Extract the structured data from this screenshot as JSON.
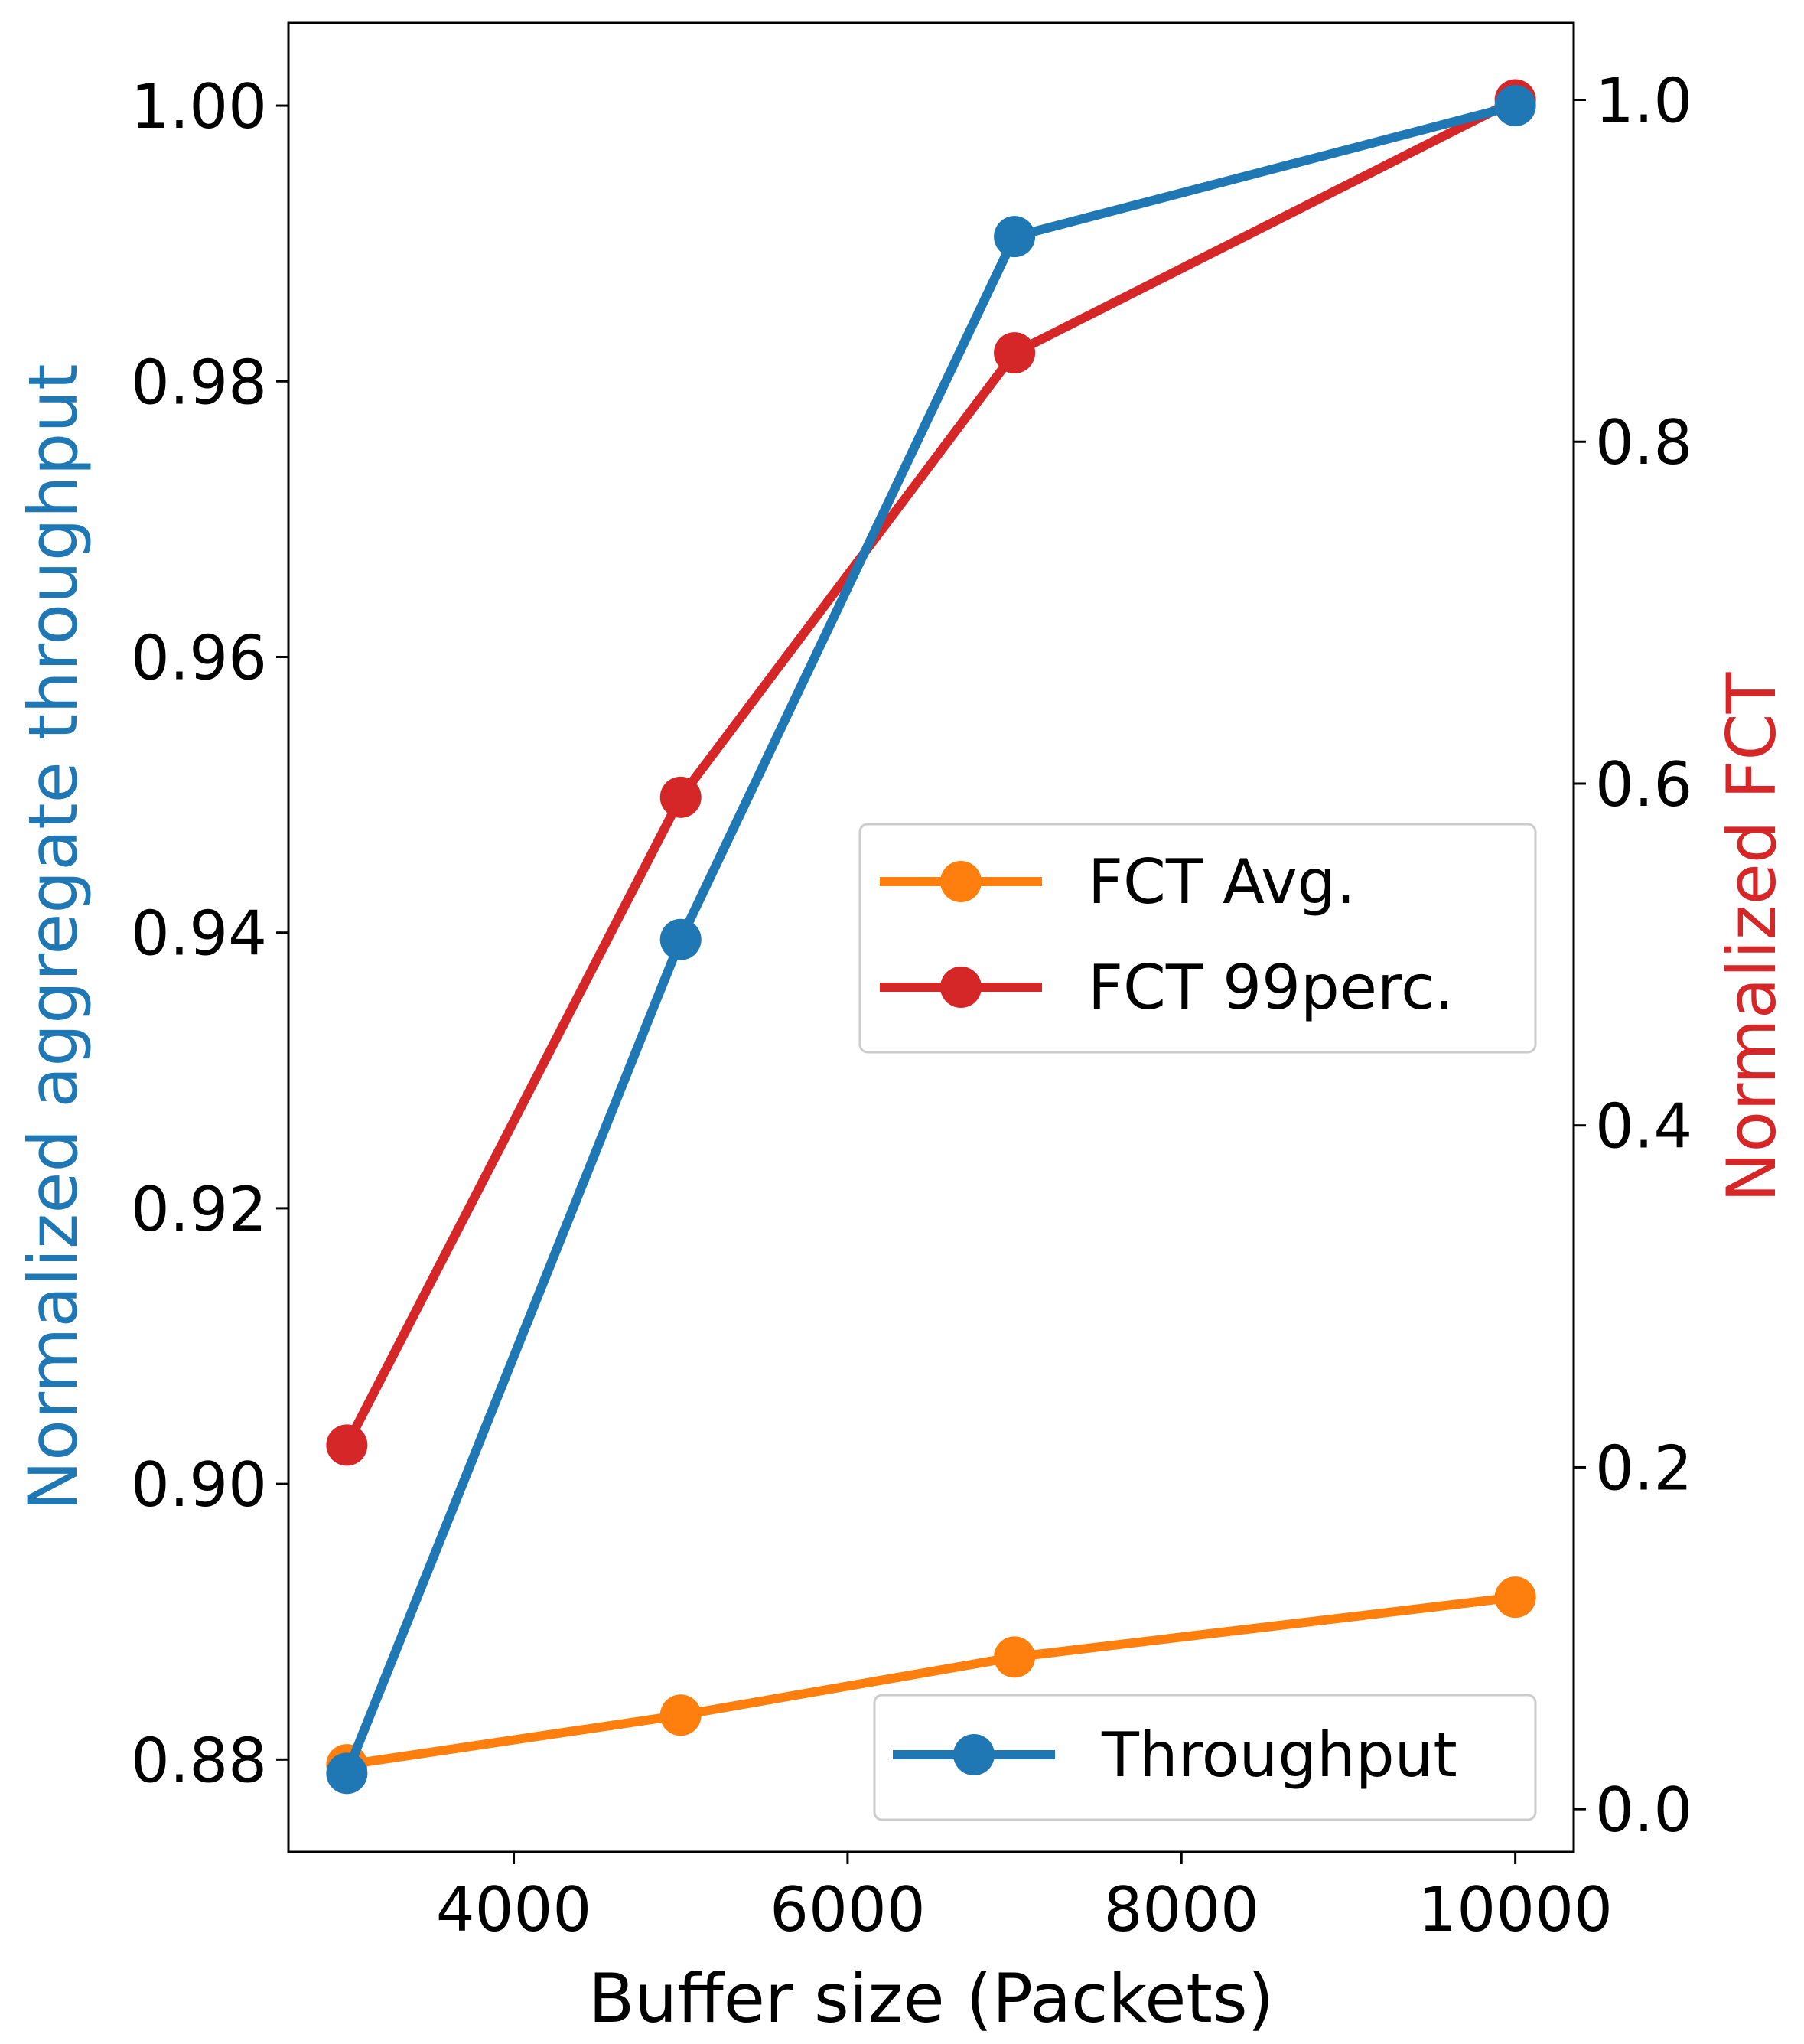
{
  "chart_data": {
    "type": "line",
    "xlabel": "Buffer size (Packets)",
    "ylabel_left": "Normalized aggregate throughput",
    "ylabel_right": "Normalized FCT",
    "xlim": [
      2650,
      10350
    ],
    "ylim_left": [
      0.8733,
      1.006
    ],
    "ylim_right": [
      -0.025,
      1.045
    ],
    "x_ticks": [
      4000,
      6000,
      8000,
      10000
    ],
    "y_left_ticks": [
      0.88,
      0.9,
      0.92,
      0.94,
      0.96,
      0.98,
      1.0
    ],
    "y_right_ticks": [
      0.0,
      0.2,
      0.4,
      0.6,
      0.8,
      1.0
    ],
    "x_tick_labels": [
      "4000",
      "6000",
      "8000",
      "10000"
    ],
    "y_left_tick_labels": [
      "0.88",
      "0.90",
      "0.92",
      "0.94",
      "0.96",
      "0.98",
      "1.00"
    ],
    "y_right_tick_labels": [
      "0.0",
      "0.2",
      "0.4",
      "0.6",
      "0.8",
      "1.0"
    ],
    "x": [
      3000,
      5000,
      7000,
      10000
    ],
    "series": [
      {
        "name": "Throughput",
        "axis": "left",
        "color": "#1f77b4",
        "values": [
          0.879,
          0.9395,
          0.9905,
          1.0
        ]
      },
      {
        "name": "FCT Avg.",
        "axis": "right",
        "color": "#ff7f0e",
        "values": [
          0.026,
          0.055,
          0.089,
          0.124
        ]
      },
      {
        "name": "FCT 99perc.",
        "axis": "right",
        "color": "#d62728",
        "values": [
          0.213,
          0.592,
          0.852,
          1.0
        ]
      }
    ],
    "legends": [
      {
        "placement": "center-right",
        "entries": [
          "FCT Avg.",
          "FCT 99perc."
        ]
      },
      {
        "placement": "lower-right",
        "entries": [
          "Throughput"
        ]
      }
    ],
    "grid": false,
    "axis_label_colors": {
      "left": "#1f77b4",
      "right": "#d62728"
    }
  }
}
